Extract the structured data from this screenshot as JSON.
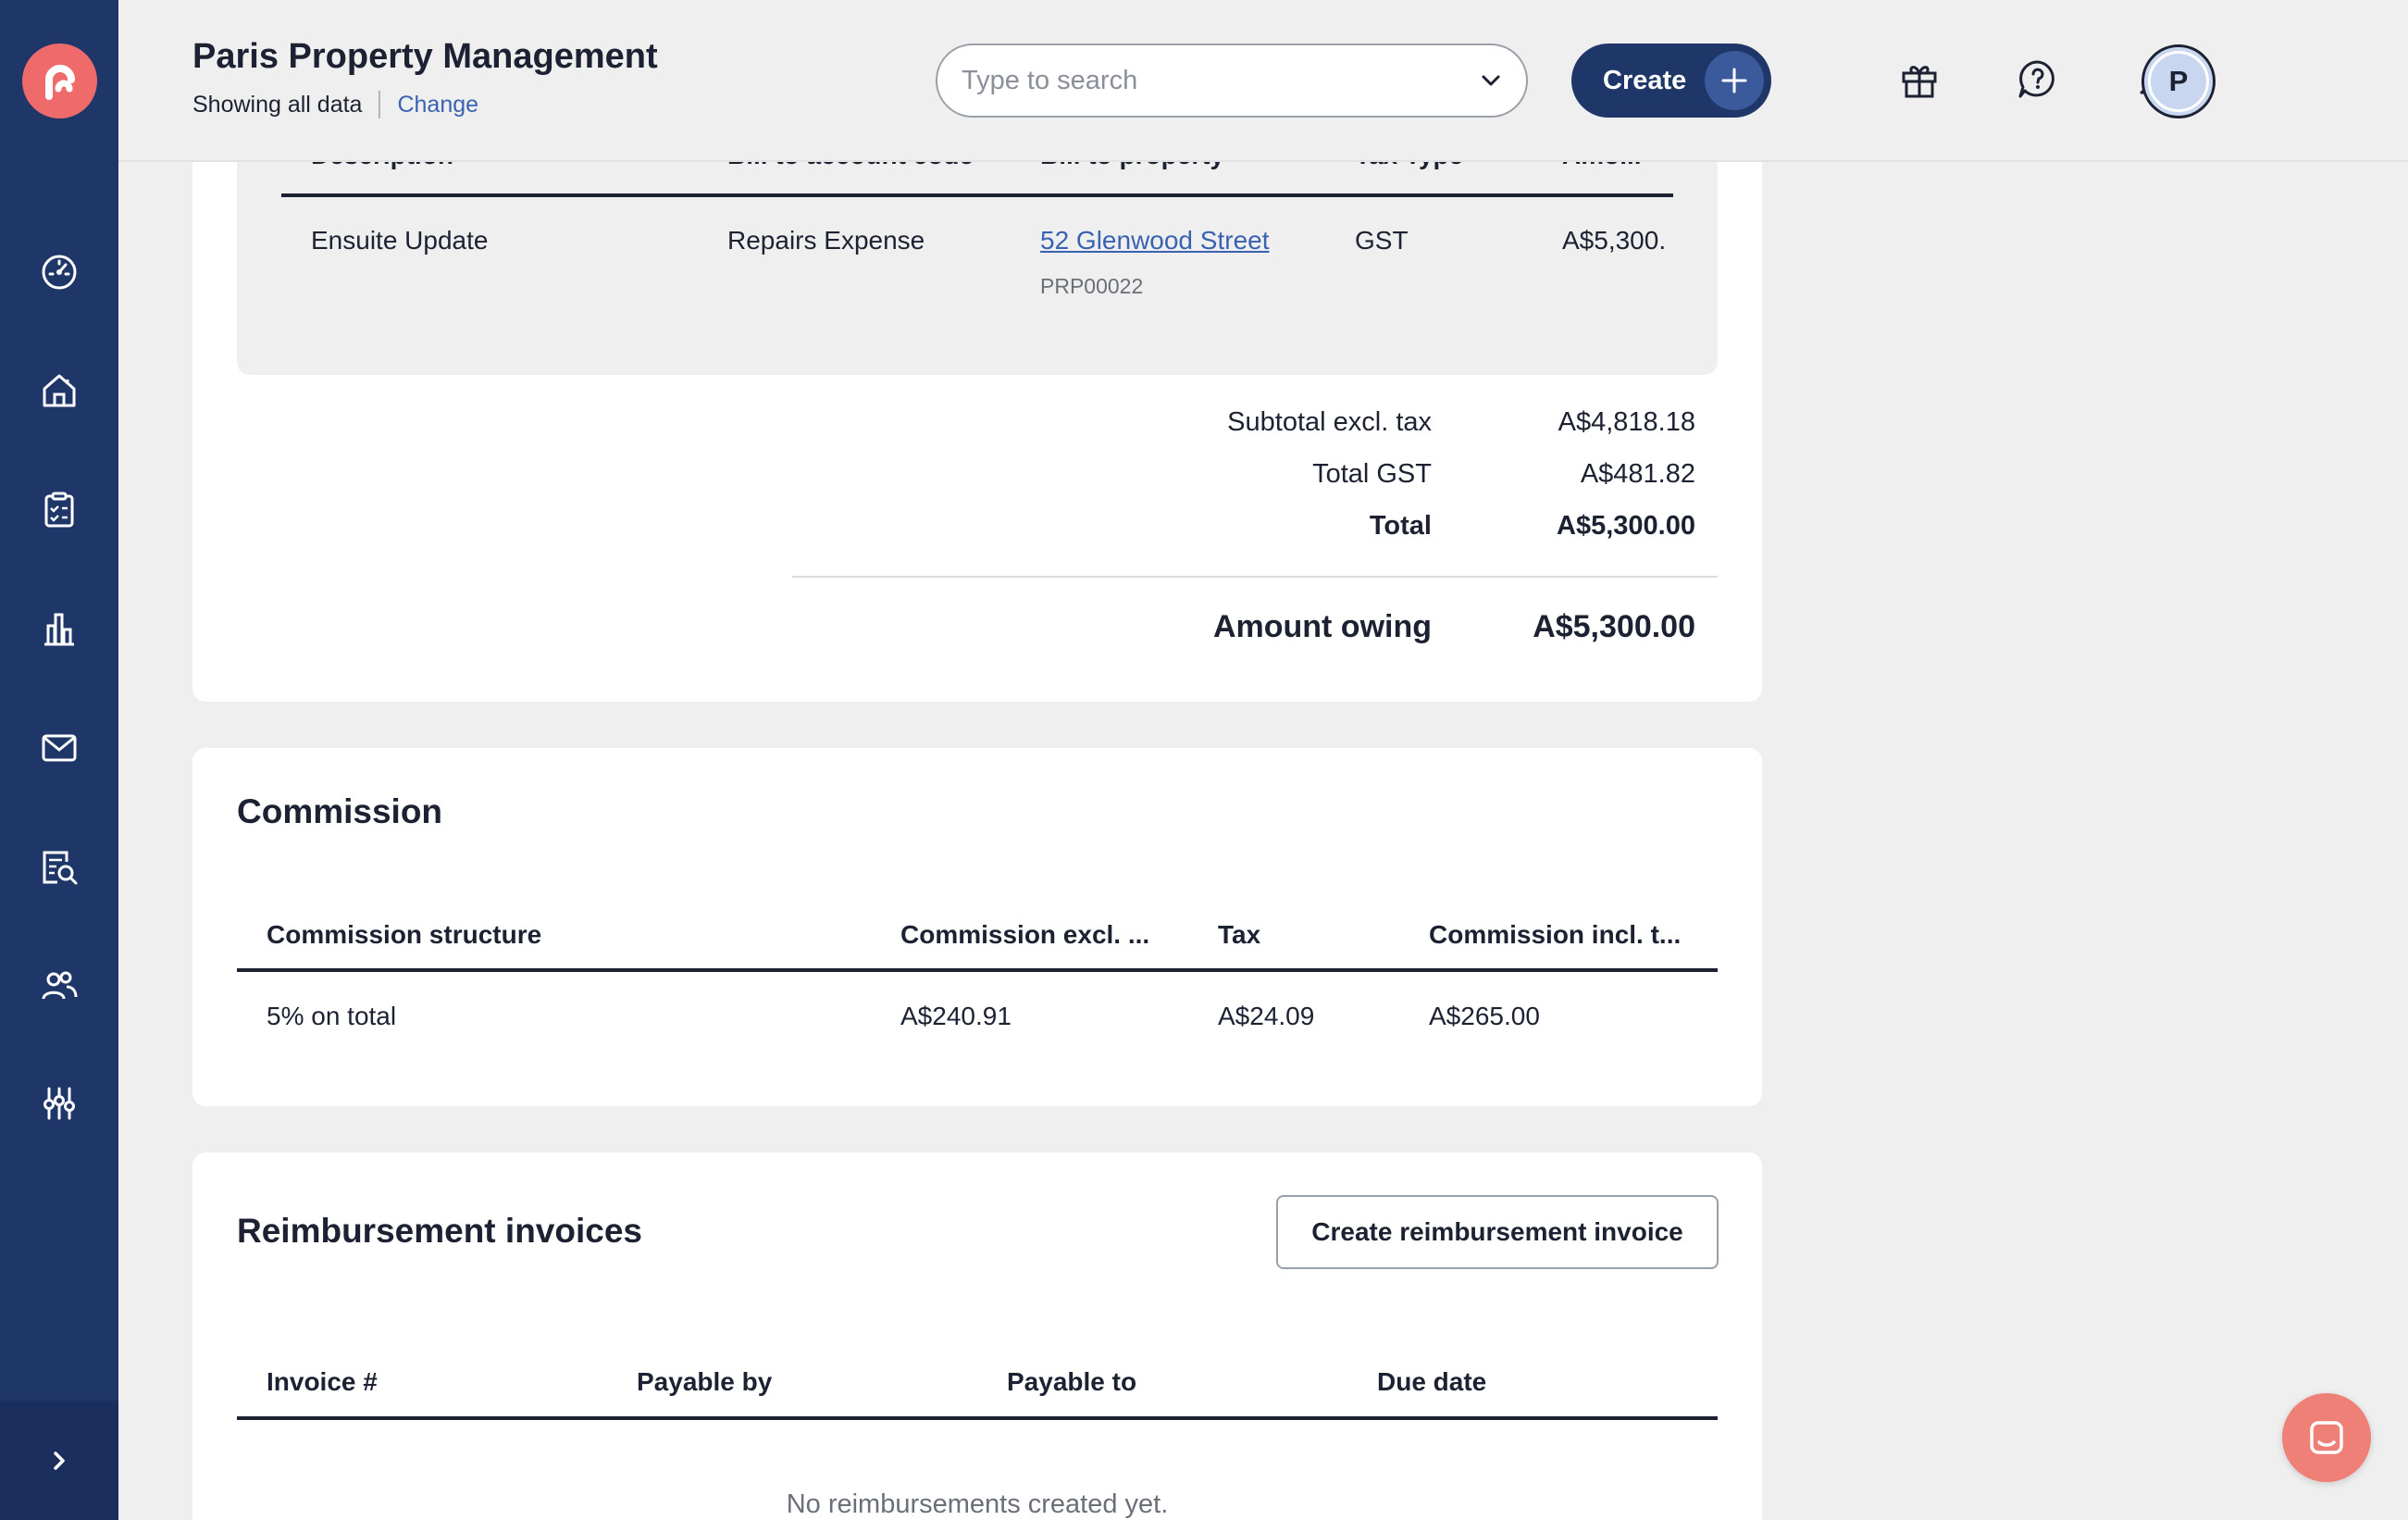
{
  "header": {
    "org_name": "Paris Property Management",
    "showing": "Showing all data",
    "change": "Change",
    "search_placeholder": "Type to search",
    "create_label": "Create",
    "avatar_initial": "P"
  },
  "sidebar": {
    "items": [
      "dashboard-icon",
      "properties-icon",
      "tasks-icon",
      "reports-icon",
      "mail-icon",
      "search-document-icon",
      "contacts-icon",
      "settings-sliders-icon"
    ],
    "toggle": "chevron-right-icon"
  },
  "bill": {
    "columns": [
      "Description",
      "Bill to account code",
      "Bill to property",
      "Tax Type",
      "Amo..."
    ],
    "row": {
      "description": "Ensuite Update",
      "account_code": "Repairs Expense",
      "property": "52 Glenwood Street",
      "property_code": "PRP00022",
      "tax_type": "GST",
      "amount": "A$5,300."
    },
    "totals": {
      "subtotal_label": "Subtotal excl. tax",
      "subtotal_value": "A$4,818.18",
      "gst_label": "Total GST",
      "gst_value": "A$481.82",
      "total_label": "Total",
      "total_value": "A$5,300.00",
      "owing_label": "Amount owing",
      "owing_value": "A$5,300.00"
    }
  },
  "commission": {
    "title": "Commission",
    "columns": [
      "Commission structure",
      "Commission excl. ...",
      "Tax",
      "Commission incl. t..."
    ],
    "row": {
      "structure": "5% on total",
      "excl": "A$240.91",
      "tax": "A$24.09",
      "incl": "A$265.00"
    }
  },
  "reimbursement": {
    "title": "Reimbursement invoices",
    "create_button": "Create reimbursement invoice",
    "columns": [
      "Invoice #",
      "Payable by",
      "Payable to",
      "Due date"
    ],
    "empty": "No reimbursements created yet."
  },
  "colors": {
    "sidebar": "#1f3668",
    "accent": "#ef6b6b",
    "link": "#3a62b2"
  }
}
